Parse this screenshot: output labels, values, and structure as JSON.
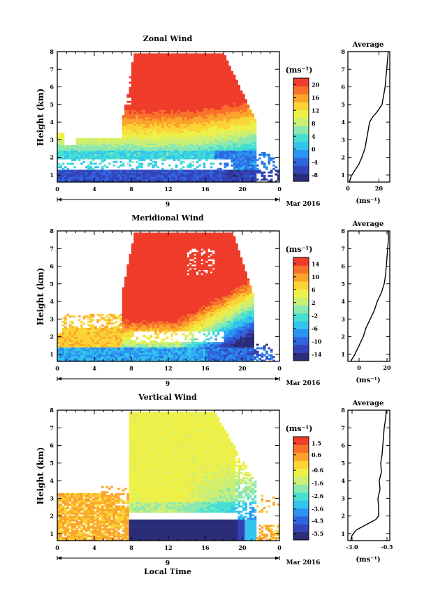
{
  "chart_data": [
    {
      "type": "heatmap",
      "title": "Zonal Wind",
      "ylabel": "Height (km)",
      "ylim": [
        0.6,
        8
      ],
      "xlim": [
        0,
        24
      ],
      "x_ticks": [
        "0",
        "4",
        "8",
        "12",
        "16",
        "20",
        "0"
      ],
      "y_ticks": [
        "1",
        "2",
        "3",
        "4",
        "5",
        "6",
        "7",
        "8"
      ],
      "date_label": "9",
      "month_label": "Mar 2016",
      "units": "(ms⁻¹)",
      "colorbar": {
        "ticks": [
          "20",
          "16",
          "12",
          "8",
          "4",
          "0",
          "-4",
          "-8"
        ],
        "min": -10,
        "max": 22
      },
      "side_panel": {
        "title": "Average",
        "xlabel": "(ms⁻¹)",
        "x_ticks": [
          "0",
          "20"
        ],
        "xlim": [
          0,
          27
        ],
        "profile": [
          [
            0.6,
            1
          ],
          [
            0.9,
            2
          ],
          [
            1.2,
            4
          ],
          [
            1.6,
            7
          ],
          [
            2.0,
            9
          ],
          [
            2.5,
            11
          ],
          [
            3.0,
            12
          ],
          [
            3.5,
            13
          ],
          [
            4.0,
            14
          ],
          [
            4.3,
            16
          ],
          [
            4.6,
            19
          ],
          [
            5.0,
            22
          ],
          [
            5.5,
            23
          ],
          [
            6.0,
            24
          ],
          [
            6.5,
            24.5
          ],
          [
            7.0,
            25
          ],
          [
            7.5,
            25.5
          ],
          [
            8.0,
            26
          ]
        ]
      }
    },
    {
      "type": "heatmap",
      "title": "Meridional Wind",
      "ylabel": "Height (km)",
      "ylim": [
        0.6,
        8
      ],
      "xlim": [
        0,
        24
      ],
      "x_ticks": [
        "0",
        "4",
        "8",
        "12",
        "16",
        "20",
        "0"
      ],
      "y_ticks": [
        "1",
        "2",
        "3",
        "4",
        "5",
        "6",
        "7",
        "8"
      ],
      "date_label": "9",
      "month_label": "Mar 2016",
      "units": "(ms⁻¹)",
      "colorbar": {
        "ticks": [
          "14",
          "10",
          "6",
          "2",
          "-2",
          "-6",
          "-10",
          "-14"
        ],
        "min": -16,
        "max": 16
      },
      "side_panel": {
        "title": "Average",
        "xlabel": "(ms⁻¹)",
        "x_ticks": [
          "0",
          "20"
        ],
        "xlim": [
          -8,
          22
        ],
        "profile": [
          [
            0.6,
            -6
          ],
          [
            1.0,
            -3
          ],
          [
            1.5,
            0
          ],
          [
            2.0,
            3
          ],
          [
            2.5,
            5
          ],
          [
            3.0,
            8
          ],
          [
            3.5,
            11
          ],
          [
            4.0,
            13
          ],
          [
            4.5,
            16
          ],
          [
            5.0,
            18
          ],
          [
            5.5,
            19
          ],
          [
            6.0,
            19.5
          ],
          [
            6.5,
            20
          ],
          [
            7.0,
            20.5
          ],
          [
            7.5,
            21
          ],
          [
            8.0,
            21
          ]
        ]
      }
    },
    {
      "type": "heatmap",
      "title": "Vertical Wind",
      "ylabel": "Height (km)",
      "xlabel": "Local Time",
      "ylim": [
        0.6,
        8
      ],
      "xlim": [
        0,
        24
      ],
      "x_ticks": [
        "0",
        "4",
        "8",
        "12",
        "16",
        "20",
        "0"
      ],
      "y_ticks": [
        "1",
        "2",
        "3",
        "4",
        "5",
        "6",
        "7",
        "8"
      ],
      "date_label": "9",
      "month_label": "Mar 2016",
      "units": "(ms⁻¹)",
      "colorbar": {
        "ticks": [
          "1.5",
          "0.6",
          "-0.6",
          "-1.6",
          "-2.6",
          "-3.6",
          "-4.5",
          "-5.5"
        ],
        "min": -6,
        "max": 2
      },
      "side_panel": {
        "title": "Average",
        "xlabel": "(ms⁻¹)",
        "x_ticks": [
          "-3.0",
          "-0.5"
        ],
        "xlim": [
          -3.3,
          -0.3
        ],
        "profile": [
          [
            0.6,
            -3.1
          ],
          [
            0.9,
            -3.0
          ],
          [
            1.2,
            -2.7
          ],
          [
            1.5,
            -2.0
          ],
          [
            1.8,
            -1.3
          ],
          [
            2.0,
            -1.1
          ],
          [
            2.5,
            -1.1
          ],
          [
            3.0,
            -1.15
          ],
          [
            3.5,
            -1.0
          ],
          [
            4.0,
            -1.05
          ],
          [
            4.5,
            -0.9
          ],
          [
            5.0,
            -0.95
          ],
          [
            5.5,
            -0.85
          ],
          [
            6.0,
            -0.8
          ],
          [
            6.5,
            -0.75
          ],
          [
            7.0,
            -0.7
          ],
          [
            7.5,
            -0.6
          ],
          [
            8.0,
            -0.55
          ]
        ]
      }
    }
  ]
}
